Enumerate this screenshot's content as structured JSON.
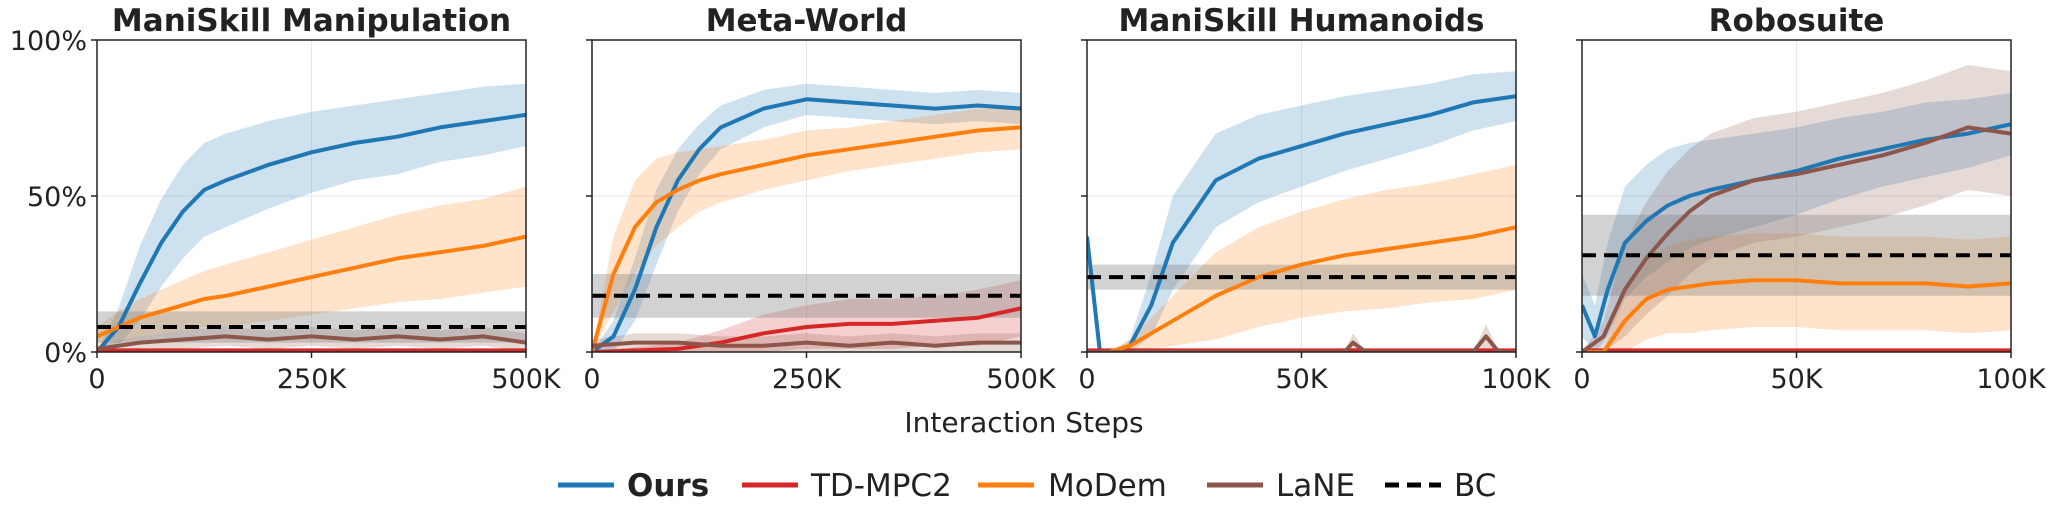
{
  "figure": {
    "xlabel": "Interaction Steps",
    "legend": {
      "placement": "bottom-center",
      "entries": [
        {
          "name": "Ours",
          "color": "#1f77b4",
          "style": "solid",
          "bold": true
        },
        {
          "name": "TD-MPC2",
          "color": "#d62728",
          "style": "solid",
          "bold": false
        },
        {
          "name": "MoDem",
          "color": "#ff7f0e",
          "style": "solid",
          "bold": false
        },
        {
          "name": "LaNE",
          "color": "#8c564b",
          "style": "solid",
          "bold": false
        },
        {
          "name": "BC",
          "color": "#000000",
          "style": "dashed",
          "bold": false
        }
      ]
    }
  },
  "chart_data": [
    {
      "type": "line",
      "title": "ManiSkill Manipulation",
      "xlim": [
        0,
        500000
      ],
      "ylim": [
        0,
        100
      ],
      "xticks": [
        0,
        250000,
        500000
      ],
      "xticklabels": [
        "0",
        "250K",
        "500K"
      ],
      "yticks": [
        0,
        50,
        100
      ],
      "yticklabels": [
        "0%",
        "50%",
        "100%"
      ],
      "grid": true,
      "series": [
        {
          "name": "Ours",
          "color": "#1f77b4",
          "x": [
            0,
            25000,
            50000,
            75000,
            100000,
            125000,
            150000,
            200000,
            250000,
            300000,
            350000,
            400000,
            450000,
            500000
          ],
          "y": [
            0,
            8,
            22,
            35,
            45,
            52,
            55,
            60,
            64,
            67,
            69,
            72,
            74,
            76
          ],
          "band": [
            0,
            6,
            12,
            14,
            15,
            15,
            15,
            14,
            13,
            12,
            12,
            11,
            11,
            10
          ]
        },
        {
          "name": "TD-MPC2",
          "color": "#d62728",
          "x": [
            0,
            500000
          ],
          "y": [
            0.5,
            0.5
          ],
          "band": [
            0,
            0
          ]
        },
        {
          "name": "MoDem",
          "color": "#ff7f0e",
          "x": [
            0,
            25000,
            50000,
            75000,
            100000,
            125000,
            150000,
            200000,
            250000,
            300000,
            350000,
            400000,
            450000,
            500000
          ],
          "y": [
            5,
            8,
            11,
            13,
            15,
            17,
            18,
            21,
            24,
            27,
            30,
            32,
            34,
            37
          ],
          "band": [
            3,
            5,
            6,
            7,
            8,
            9,
            10,
            11,
            12,
            13,
            14,
            15,
            15,
            16
          ]
        },
        {
          "name": "LaNE",
          "color": "#8c564b",
          "x": [
            0,
            50000,
            100000,
            150000,
            200000,
            250000,
            300000,
            350000,
            400000,
            450000,
            500000
          ],
          "y": [
            1,
            3,
            4,
            5,
            4,
            5,
            4,
            5,
            4,
            5,
            3
          ],
          "band": [
            1,
            2,
            3,
            3,
            3,
            3,
            3,
            3,
            3,
            3,
            3
          ]
        },
        {
          "name": "BC",
          "color": "#000000",
          "dashed": true,
          "x": [
            0,
            500000
          ],
          "y": [
            8,
            8
          ],
          "band": [
            5,
            5
          ]
        }
      ]
    },
    {
      "type": "line",
      "title": "Meta-World",
      "xlim": [
        0,
        500000
      ],
      "ylim": [
        0,
        100
      ],
      "xticks": [
        0,
        250000,
        500000
      ],
      "xticklabels": [
        "0",
        "250K",
        "500K"
      ],
      "yticks": [
        0,
        50,
        100
      ],
      "yticklabels": [
        "",
        "",
        ""
      ],
      "grid": true,
      "series": [
        {
          "name": "Ours",
          "color": "#1f77b4",
          "x": [
            0,
            25000,
            50000,
            75000,
            100000,
            125000,
            150000,
            200000,
            250000,
            300000,
            350000,
            400000,
            450000,
            500000
          ],
          "y": [
            0,
            5,
            20,
            40,
            55,
            65,
            72,
            78,
            81,
            80,
            79,
            78,
            79,
            78
          ],
          "band": [
            0,
            5,
            10,
            12,
            10,
            8,
            7,
            6,
            5,
            5,
            5,
            5,
            5,
            5
          ]
        },
        {
          "name": "TD-MPC2",
          "color": "#d62728",
          "x": [
            0,
            100000,
            150000,
            200000,
            250000,
            300000,
            350000,
            400000,
            450000,
            500000
          ],
          "y": [
            0,
            1,
            3,
            6,
            8,
            9,
            9,
            10,
            11,
            14
          ],
          "band": [
            0,
            2,
            4,
            6,
            7,
            8,
            8,
            8,
            9,
            9
          ]
        },
        {
          "name": "MoDem",
          "color": "#ff7f0e",
          "x": [
            0,
            25000,
            50000,
            75000,
            100000,
            125000,
            150000,
            200000,
            250000,
            300000,
            350000,
            400000,
            450000,
            500000
          ],
          "y": [
            0,
            25,
            40,
            48,
            52,
            55,
            57,
            60,
            63,
            65,
            67,
            69,
            71,
            72
          ],
          "band": [
            0,
            12,
            15,
            14,
            12,
            10,
            9,
            8,
            8,
            7,
            7,
            7,
            7,
            7
          ]
        },
        {
          "name": "LaNE",
          "color": "#8c564b",
          "x": [
            0,
            50000,
            100000,
            150000,
            200000,
            250000,
            300000,
            350000,
            400000,
            450000,
            500000
          ],
          "y": [
            2,
            3,
            3,
            2,
            2,
            3,
            2,
            3,
            2,
            3,
            3
          ],
          "band": [
            2,
            3,
            3,
            3,
            3,
            3,
            3,
            3,
            3,
            3,
            3
          ]
        },
        {
          "name": "BC",
          "color": "#000000",
          "dashed": true,
          "x": [
            0,
            500000
          ],
          "y": [
            18,
            18
          ],
          "band": [
            7,
            7
          ]
        }
      ]
    },
    {
      "type": "line",
      "title": "ManiSkill Humanoids",
      "xlim": [
        0,
        100000
      ],
      "ylim": [
        0,
        100
      ],
      "xticks": [
        0,
        50000,
        100000
      ],
      "xticklabels": [
        "0",
        "50K",
        "100K"
      ],
      "yticks": [
        0,
        50,
        100
      ],
      "yticklabels": [
        "",
        "",
        ""
      ],
      "grid": true,
      "series": [
        {
          "name": "Ours",
          "color": "#1f77b4",
          "x": [
            0,
            3000,
            6000,
            10000,
            15000,
            20000,
            25000,
            30000,
            40000,
            50000,
            60000,
            70000,
            80000,
            90000,
            100000
          ],
          "y": [
            37,
            0,
            0,
            2,
            15,
            35,
            45,
            55,
            62,
            66,
            70,
            73,
            76,
            80,
            82
          ],
          "band": [
            0,
            0,
            0,
            2,
            10,
            15,
            15,
            15,
            14,
            13,
            12,
            11,
            10,
            9,
            8
          ]
        },
        {
          "name": "TD-MPC2",
          "color": "#d62728",
          "x": [
            0,
            100000
          ],
          "y": [
            0.5,
            0.5
          ],
          "band": [
            0,
            0
          ]
        },
        {
          "name": "MoDem",
          "color": "#ff7f0e",
          "x": [
            0,
            5000,
            10000,
            15000,
            20000,
            25000,
            30000,
            40000,
            50000,
            60000,
            70000,
            80000,
            90000,
            100000
          ],
          "y": [
            0,
            0,
            2,
            6,
            10,
            14,
            18,
            24,
            28,
            31,
            33,
            35,
            37,
            40
          ],
          "band": [
            0,
            0,
            2,
            5,
            8,
            11,
            14,
            16,
            17,
            18,
            19,
            19,
            20,
            20
          ]
        },
        {
          "name": "LaNE",
          "color": "#8c564b",
          "x": [
            0,
            50000,
            60000,
            62000,
            65000,
            70000,
            90000,
            93000,
            96000,
            100000
          ],
          "y": [
            0,
            0,
            0,
            3,
            0,
            0,
            0,
            5,
            0,
            0
          ],
          "band": [
            0,
            0,
            0,
            3,
            0,
            0,
            0,
            4,
            0,
            0
          ]
        },
        {
          "name": "BC",
          "color": "#000000",
          "dashed": true,
          "x": [
            0,
            100000
          ],
          "y": [
            24,
            24
          ],
          "band": [
            4,
            4
          ]
        }
      ]
    },
    {
      "type": "line",
      "title": "Robosuite",
      "xlim": [
        0,
        100000
      ],
      "ylim": [
        0,
        100
      ],
      "xticks": [
        0,
        50000,
        100000
      ],
      "xticklabels": [
        "0",
        "50K",
        "100K"
      ],
      "yticks": [
        0,
        50,
        100
      ],
      "yticklabels": [
        "",
        "",
        ""
      ],
      "grid": true,
      "series": [
        {
          "name": "Ours",
          "color": "#1f77b4",
          "x": [
            0,
            3000,
            6000,
            10000,
            15000,
            20000,
            25000,
            30000,
            40000,
            50000,
            60000,
            70000,
            80000,
            90000,
            100000
          ],
          "y": [
            15,
            5,
            20,
            35,
            42,
            47,
            50,
            52,
            55,
            58,
            62,
            65,
            68,
            70,
            73
          ],
          "band": [
            10,
            10,
            15,
            18,
            18,
            18,
            17,
            16,
            15,
            14,
            13,
            12,
            12,
            11,
            10
          ]
        },
        {
          "name": "TD-MPC2",
          "color": "#d62728",
          "x": [
            0,
            100000
          ],
          "y": [
            0.5,
            0.5
          ],
          "band": [
            0,
            0
          ]
        },
        {
          "name": "MoDem",
          "color": "#ff7f0e",
          "x": [
            0,
            5000,
            10000,
            15000,
            20000,
            25000,
            30000,
            40000,
            50000,
            60000,
            70000,
            80000,
            90000,
            100000
          ],
          "y": [
            0,
            0,
            10,
            17,
            20,
            21,
            22,
            23,
            23,
            22,
            22,
            22,
            21,
            22
          ],
          "band": [
            0,
            0,
            10,
            13,
            14,
            15,
            15,
            15,
            15,
            15,
            15,
            15,
            15,
            15
          ]
        },
        {
          "name": "LaNE",
          "color": "#8c564b",
          "x": [
            0,
            5000,
            10000,
            15000,
            20000,
            25000,
            30000,
            40000,
            50000,
            60000,
            70000,
            80000,
            90000,
            100000
          ],
          "y": [
            0,
            5,
            20,
            30,
            38,
            45,
            50,
            55,
            57,
            60,
            63,
            67,
            72,
            70
          ],
          "band": [
            0,
            5,
            15,
            18,
            20,
            20,
            20,
            20,
            20,
            20,
            20,
            20,
            20,
            20
          ]
        },
        {
          "name": "BC",
          "color": "#000000",
          "dashed": true,
          "x": [
            0,
            100000
          ],
          "y": [
            31,
            31
          ],
          "band": [
            13,
            13
          ]
        }
      ]
    }
  ]
}
